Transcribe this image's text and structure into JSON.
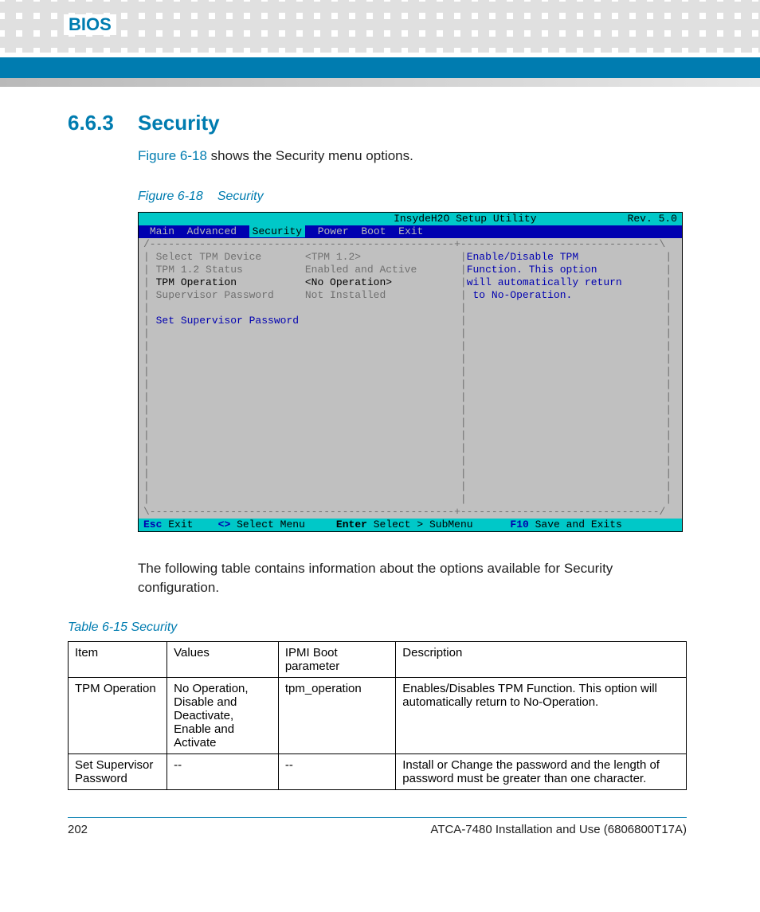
{
  "chapter": "BIOS",
  "section": {
    "number": "6.6.3",
    "title": "Security"
  },
  "intro": {
    "fig_link": "Figure 6-18",
    "rest": " shows the Security menu options."
  },
  "figure": {
    "label": "Figure 6-18",
    "title": "Security"
  },
  "bios": {
    "colors": {
      "teal": "#00c8c8",
      "blue": "#0000b0",
      "gray_bg": "#c0c0c0",
      "dim": "#707070"
    },
    "header": {
      "title": "InsydeH2O Setup Utility",
      "rev": "Rev. 5.0"
    },
    "menus": [
      "Main",
      "Advanced",
      "Security",
      "Power",
      "Boot",
      "Exit"
    ],
    "selected_tab": "Security",
    "left_items": [
      {
        "label": "Select TPM Device",
        "value": "<TPM 1.2>",
        "style": "dim"
      },
      {
        "label": "TPM 1.2 Status",
        "value": "Enabled and Active",
        "style": "dim"
      },
      {
        "label": "TPM Operation",
        "value": "<No Operation>",
        "style": "black"
      },
      {
        "label": "Supervisor Password",
        "value": "Not Installed",
        "style": "dim"
      },
      {
        "label": "",
        "value": "",
        "style": "dim"
      },
      {
        "label": "Set Supervisor Password",
        "value": "",
        "style": "blue"
      }
    ],
    "help_lines": [
      "Enable/Disable TPM",
      "Function. This option",
      "will automatically return",
      " to No-Operation."
    ],
    "footer": {
      "esc": "Esc",
      "esc_label": "Exit",
      "arrows": "<>",
      "arrows_label": "Select Menu",
      "enter": "Enter",
      "enter_label": "Select > SubMenu",
      "f10": "F10",
      "f10_label": "Save and Exits"
    }
  },
  "post_figure_text": "The following table contains information about the options available for Security configuration.",
  "table": {
    "caption": "Table 6-15 Security",
    "columns": [
      "Item",
      "Values",
      "IPMI Boot parameter",
      "Description"
    ],
    "col_widths": [
      "16%",
      "18%",
      "19%",
      "47%"
    ],
    "rows": [
      [
        "TPM Operation",
        "No Operation, Disable and Deactivate, Enable and Activate",
        "tpm_operation",
        "Enables/Disables TPM Function. This option will automatically return to No-Operation."
      ],
      [
        "Set Supervisor Password",
        "--",
        "--",
        "Install or Change the password and the length of password must be greater than one character."
      ]
    ]
  },
  "footer": {
    "page": "202",
    "doc": "ATCA-7480 Installation and Use (6806800T17A)"
  }
}
